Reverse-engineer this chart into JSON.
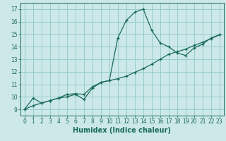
{
  "xlabel": "Humidex (Indice chaleur)",
  "bg_color": "#cce8e8",
  "grid_color": "#99cccc",
  "line_color": "#1a6b5a",
  "xlim": [
    -0.5,
    23.5
  ],
  "ylim": [
    8.5,
    17.5
  ],
  "xticks": [
    0,
    1,
    2,
    3,
    4,
    5,
    6,
    7,
    8,
    9,
    10,
    11,
    12,
    13,
    14,
    15,
    16,
    17,
    18,
    19,
    20,
    21,
    22,
    23
  ],
  "yticks": [
    9,
    10,
    11,
    12,
    13,
    14,
    15,
    16,
    17
  ],
  "curve1_x": [
    0,
    1,
    2,
    3,
    4,
    5,
    6,
    7,
    8,
    9,
    10,
    11,
    12,
    13,
    14,
    15,
    16,
    17,
    18,
    19,
    20,
    21,
    22,
    23
  ],
  "curve1_y": [
    9.0,
    9.9,
    9.5,
    9.7,
    9.9,
    10.2,
    10.25,
    10.2,
    10.8,
    11.15,
    11.3,
    14.7,
    16.1,
    16.75,
    17.0,
    15.3,
    14.3,
    14.0,
    13.5,
    13.3,
    13.9,
    14.2,
    14.7,
    14.95
  ],
  "curve2_x": [
    0,
    1,
    2,
    3,
    4,
    5,
    6,
    7,
    8,
    9,
    10,
    11,
    12,
    13,
    14,
    15,
    16,
    17,
    18,
    19,
    20,
    21,
    22,
    23
  ],
  "curve2_y": [
    9.0,
    9.3,
    9.5,
    9.7,
    9.9,
    10.0,
    10.2,
    9.8,
    10.7,
    11.15,
    11.3,
    11.45,
    11.65,
    11.95,
    12.25,
    12.6,
    13.0,
    13.4,
    13.6,
    13.8,
    14.1,
    14.35,
    14.65,
    14.95
  ],
  "tick_fontsize": 5.5,
  "xlabel_fontsize": 7
}
